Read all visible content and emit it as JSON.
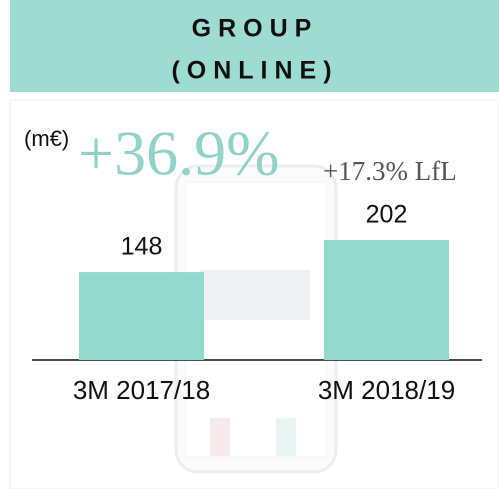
{
  "chart_data": {
    "type": "bar",
    "title_lines": [
      "GROUP",
      "(ONLINE)"
    ],
    "unit": "(m€)",
    "annotations": [
      "+36.9%",
      "+17.3% LfL"
    ],
    "categories": [
      "3M 2017/18",
      "3M 2018/19"
    ],
    "values": [
      148,
      202
    ],
    "color": "#93d9cd"
  }
}
